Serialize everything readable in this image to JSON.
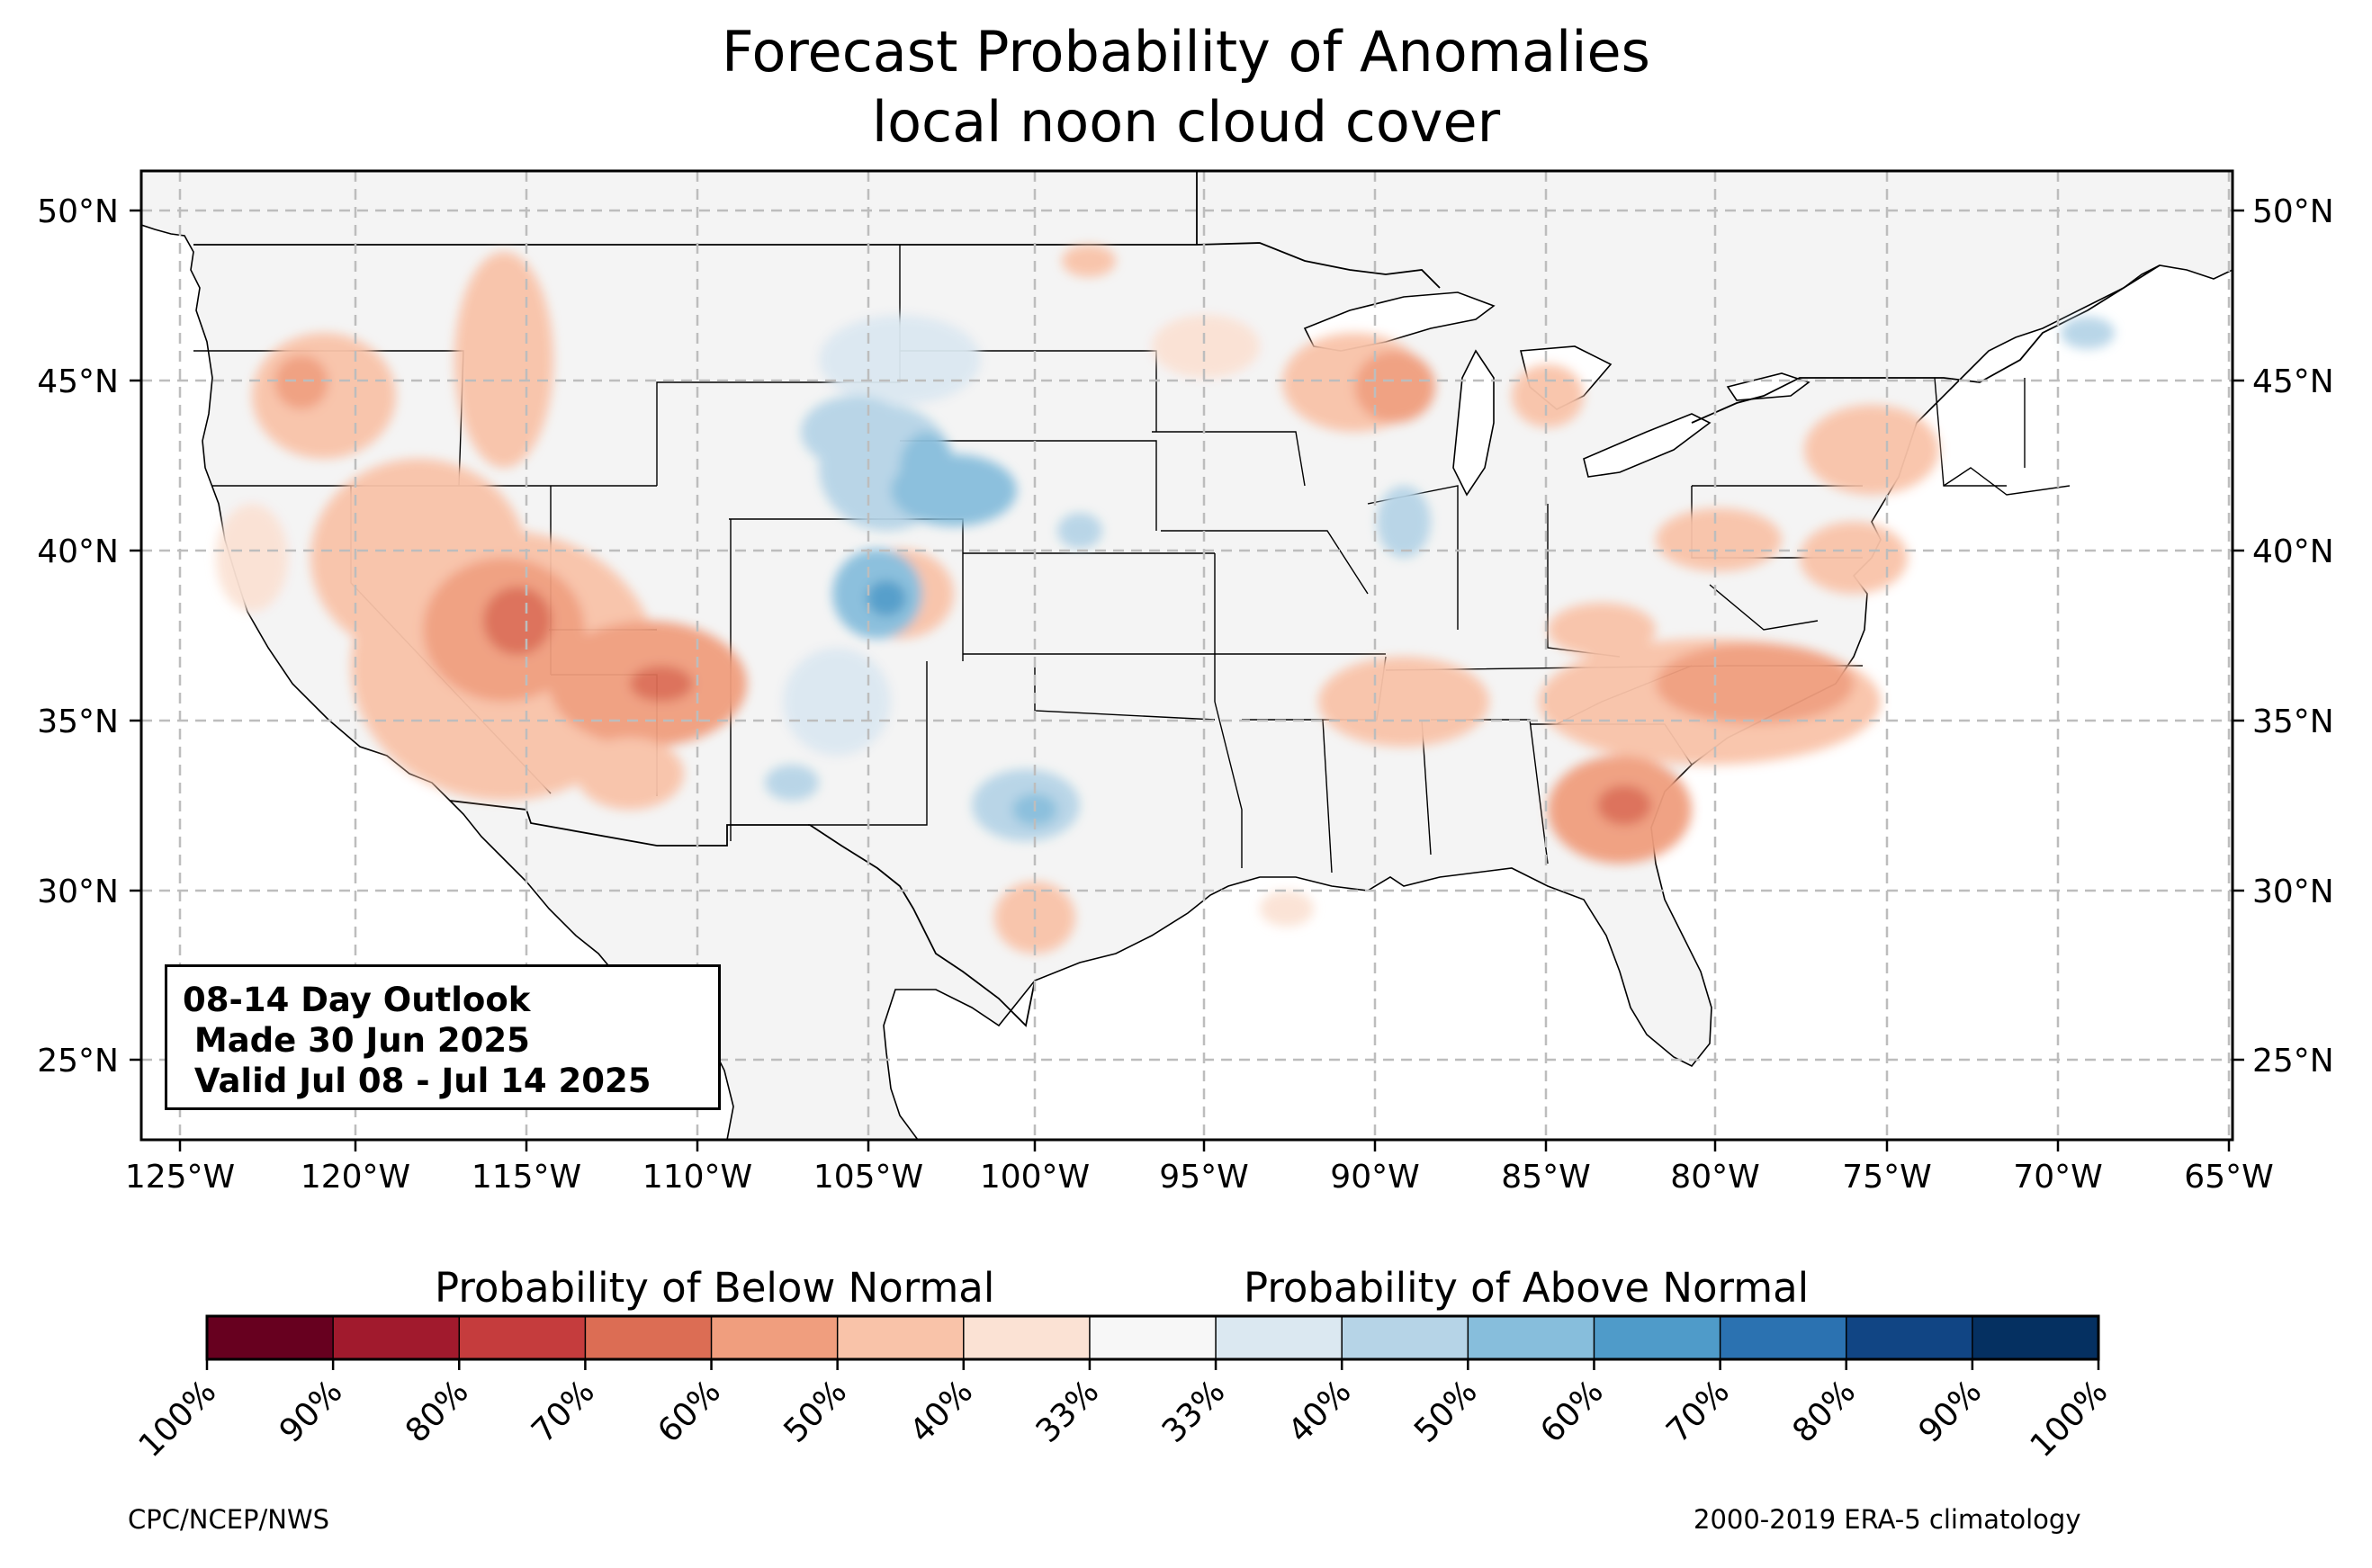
{
  "title": {
    "line1": "Forecast Probability of Anomalies",
    "line2": "local noon cloud cover"
  },
  "map": {
    "lat_labels": [
      "50°N",
      "45°N",
      "40°N",
      "35°N",
      "30°N",
      "25°N"
    ],
    "lon_labels": [
      "125°W",
      "120°W",
      "115°W",
      "110°W",
      "105°W",
      "100°W",
      "95°W",
      "90°W",
      "85°W",
      "80°W",
      "75°W",
      "70°W",
      "65°W"
    ],
    "land_color": "#f4f4f4",
    "ocean_color": "#ffffff",
    "gridline_style": "dashed light gray"
  },
  "outlook_box": {
    "line1": "08-14 Day Outlook",
    "line2": " Made 30 Jun 2025",
    "line3": " Valid Jul 08 - Jul 14 2025"
  },
  "colorbar": {
    "below_label": "Probability of Below Normal",
    "above_label": "Probability of Above Normal",
    "tick_labels": [
      "100%",
      "90%",
      "80%",
      "70%",
      "60%",
      "50%",
      "40%",
      "33%",
      "33%",
      "40%",
      "50%",
      "60%",
      "70%",
      "80%",
      "90%",
      "100%"
    ],
    "colors": [
      "#67001f",
      "#a11a2d",
      "#c53c3d",
      "#dc6d54",
      "#f09e7e",
      "#f9c3a9",
      "#fbe2d4",
      "#f7f7f7",
      "#dbe8f1",
      "#b6d4e7",
      "#87bedc",
      "#4f9bc9",
      "#2b72b1",
      "#114584",
      "#053061"
    ]
  },
  "footer": {
    "left": "CPC/NCEP/NWS",
    "right": "2000-2019 ERA-5 climatology"
  }
}
